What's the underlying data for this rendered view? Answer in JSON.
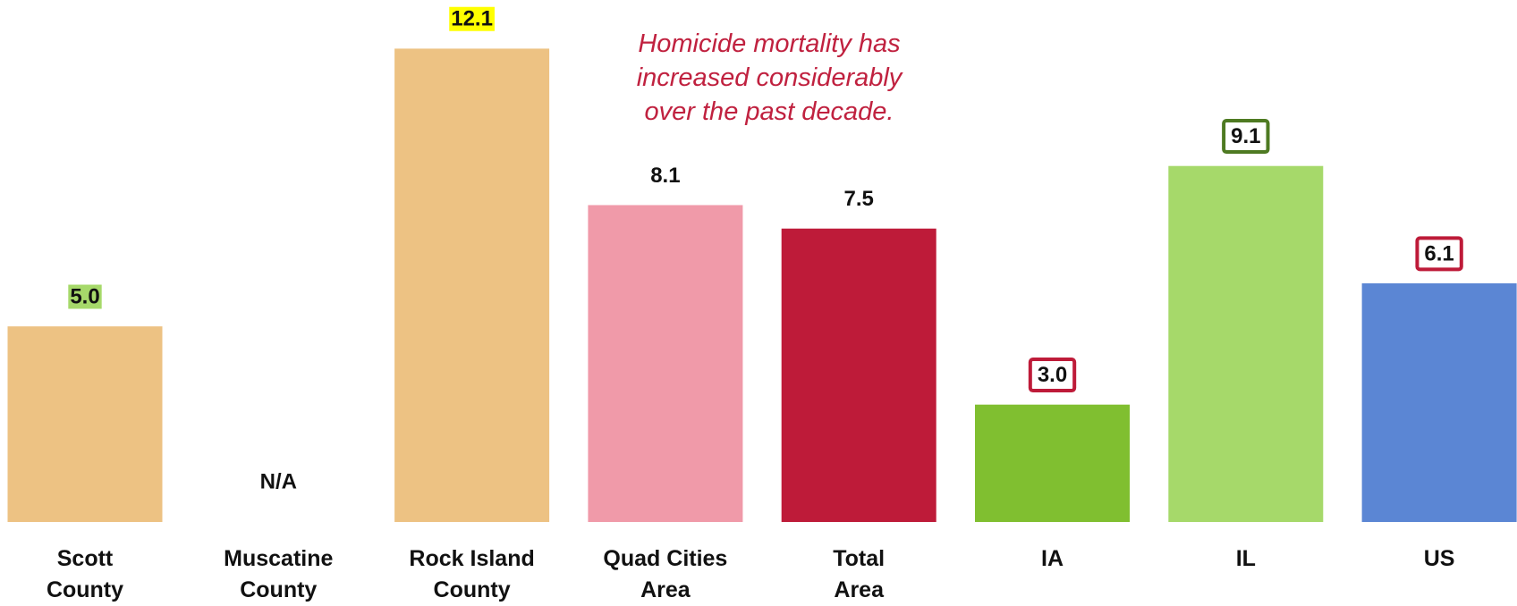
{
  "chart_data": {
    "type": "bar",
    "annotation": "Homicide mortality has\nincreased considerably\nover the past decade.",
    "categories": [
      "Scott\nCounty",
      "Muscatine\nCounty",
      "Rock Island\nCounty",
      "Quad Cities\nArea",
      "Total\nArea",
      "IA",
      "IL",
      "US"
    ],
    "values": [
      5.0,
      null,
      12.1,
      8.1,
      7.5,
      3.0,
      9.1,
      6.1
    ],
    "value_labels": [
      "5.0",
      "N/A",
      "12.1",
      "8.1",
      "7.5",
      "3.0",
      "9.1",
      "6.1"
    ],
    "colors": [
      "#edc283",
      null,
      "#edc283",
      "#f09aa9",
      "#be1b39",
      "#80bf30",
      "#a6d96a",
      "#5b86d4"
    ],
    "label_highlight": [
      "#a6d96a",
      null,
      "#ffff00",
      null,
      null,
      null,
      null,
      null
    ],
    "label_border": [
      null,
      null,
      null,
      null,
      null,
      "#be1b39",
      "#4e7a22",
      "#be1b39"
    ],
    "annotation_color": "#c0213f",
    "ylim": [
      0,
      13
    ]
  }
}
